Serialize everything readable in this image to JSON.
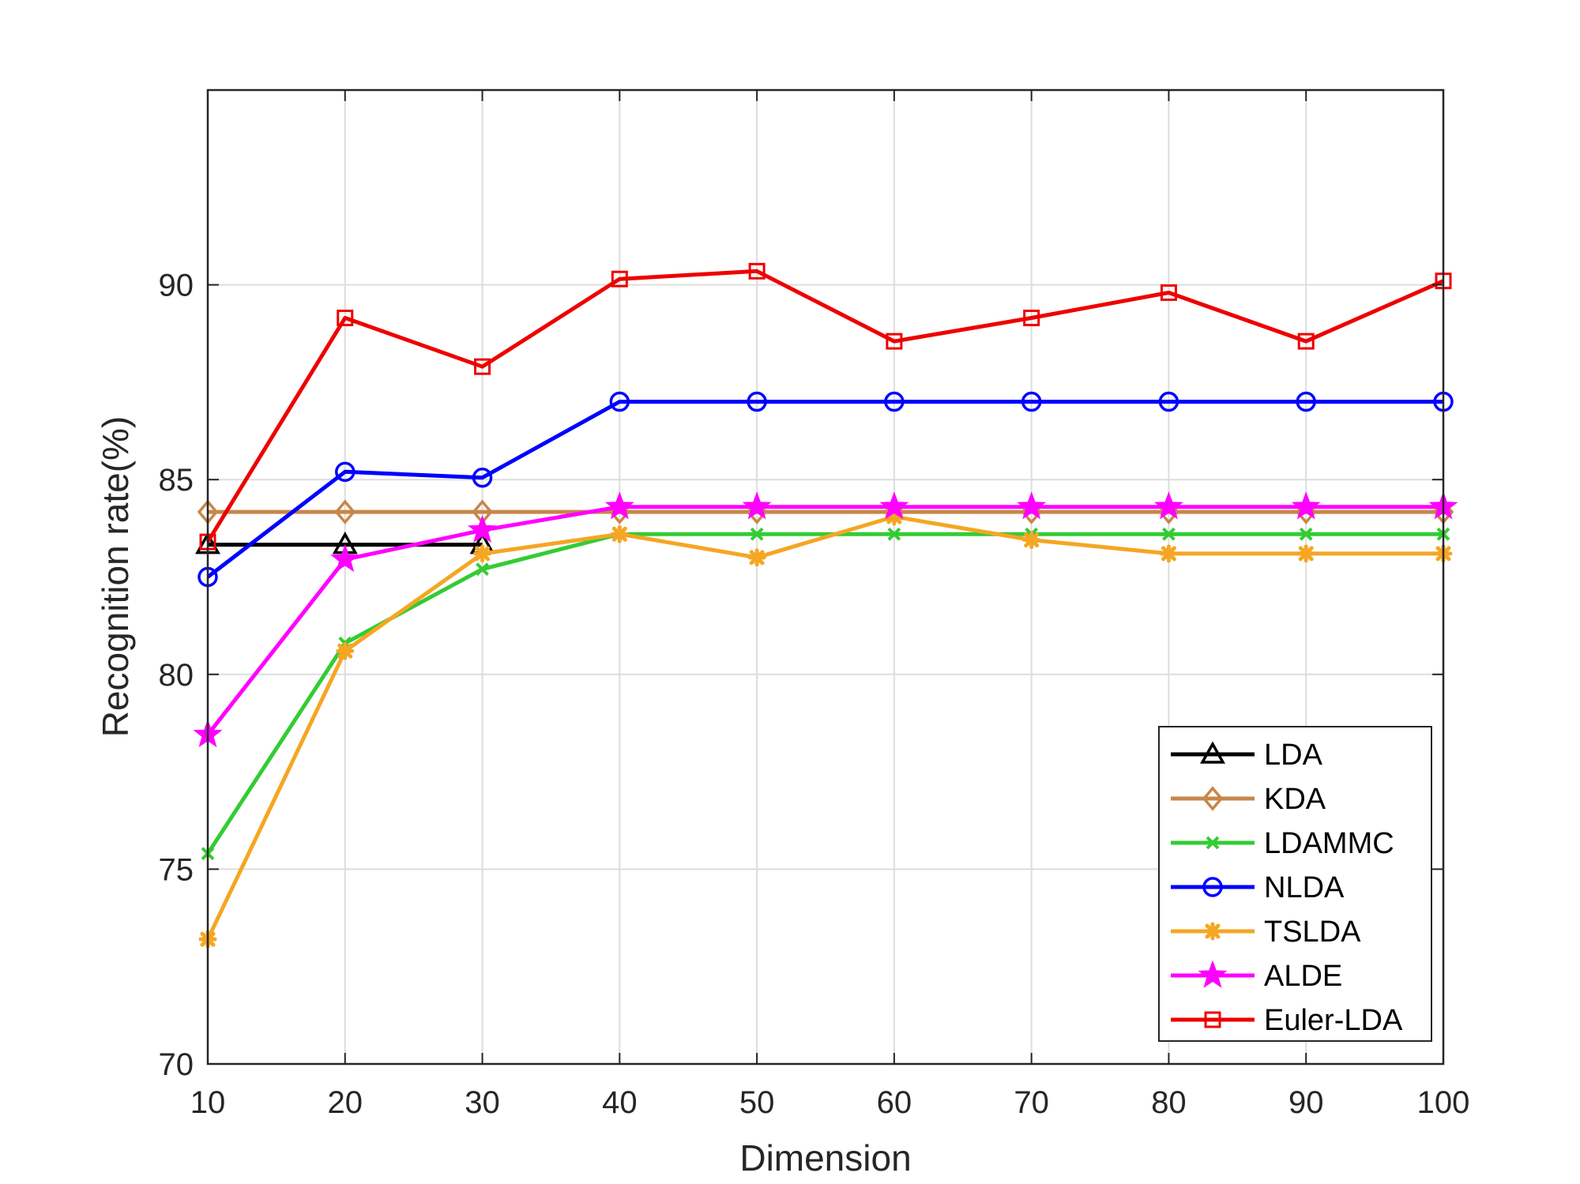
{
  "chart_data": {
    "type": "line",
    "title": "",
    "xlabel": "Dimension",
    "ylabel": "Recognition rate(%)",
    "x": [
      10,
      20,
      30,
      40,
      50,
      60,
      70,
      80,
      90,
      100
    ],
    "xlim": [
      10,
      100
    ],
    "ylim": [
      70,
      95
    ],
    "xticks": [
      "10",
      "20",
      "30",
      "40",
      "50",
      "60",
      "70",
      "80",
      "90",
      "100"
    ],
    "yticks": [
      "70",
      "75",
      "80",
      "85",
      "90"
    ],
    "grid": true,
    "legend_position": "bottom-right",
    "series": [
      {
        "name": "LDA",
        "color": "#000000",
        "marker": "triangle",
        "x": [
          10,
          20,
          30
        ],
        "values": [
          83.33,
          83.33,
          83.33
        ]
      },
      {
        "name": "KDA",
        "color": "#c8864a",
        "marker": "diamond",
        "x": [
          10,
          20,
          30,
          40,
          50,
          60,
          70,
          80,
          90,
          100
        ],
        "values": [
          84.17,
          84.17,
          84.17,
          84.17,
          84.17,
          84.17,
          84.17,
          84.17,
          84.17,
          84.17
        ]
      },
      {
        "name": "LDAMMC",
        "color": "#33cc33",
        "marker": "x",
        "x": [
          10,
          20,
          30,
          40,
          50,
          60,
          70,
          80,
          90,
          100
        ],
        "values": [
          75.4,
          80.8,
          82.7,
          83.6,
          83.6,
          83.6,
          83.6,
          83.6,
          83.6,
          83.6
        ]
      },
      {
        "name": "NLDA",
        "color": "#0000ff",
        "marker": "circle",
        "x": [
          10,
          20,
          30,
          40,
          50,
          60,
          70,
          80,
          90,
          100
        ],
        "values": [
          82.5,
          85.2,
          85.05,
          87.0,
          87.0,
          87.0,
          87.0,
          87.0,
          87.0,
          87.0
        ]
      },
      {
        "name": "TSLDA",
        "color": "#f5a623",
        "marker": "asterisk",
        "x": [
          10,
          20,
          30,
          40,
          50,
          60,
          70,
          80,
          90,
          100
        ],
        "values": [
          73.2,
          80.6,
          83.1,
          83.6,
          83.0,
          84.05,
          83.45,
          83.1,
          83.1,
          83.1
        ]
      },
      {
        "name": "ALDE",
        "color": "#ff00ff",
        "marker": "star",
        "x": [
          10,
          20,
          30,
          40,
          50,
          60,
          70,
          80,
          90,
          100
        ],
        "values": [
          78.45,
          82.95,
          83.7,
          84.3,
          84.3,
          84.3,
          84.3,
          84.3,
          84.3,
          84.3
        ]
      },
      {
        "name": "Euler-LDA",
        "color": "#ee0000",
        "marker": "square",
        "x": [
          10,
          20,
          30,
          40,
          50,
          60,
          70,
          80,
          90,
          100
        ],
        "values": [
          83.4,
          89.15,
          87.9,
          90.15,
          90.35,
          88.55,
          89.15,
          89.8,
          88.55,
          90.1
        ]
      }
    ]
  }
}
